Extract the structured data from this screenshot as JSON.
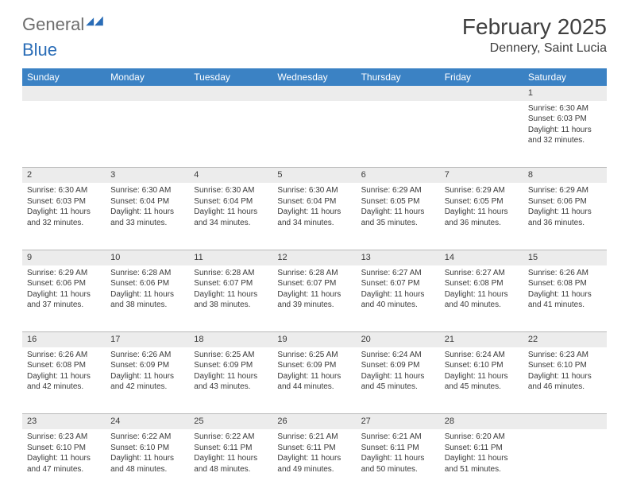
{
  "logo": {
    "word1": "General",
    "word2": "Blue"
  },
  "title": "February 2025",
  "location": "Dennery, Saint Lucia",
  "colors": {
    "header_bg": "#3b82c4",
    "header_text": "#ffffff",
    "numrow_bg": "#ececec",
    "numrow_border": "#b8b8b8",
    "body_text": "#3a3a3a",
    "logo_grey": "#6d6d6d",
    "logo_blue": "#2a6db7"
  },
  "daysOfWeek": [
    "Sunday",
    "Monday",
    "Tuesday",
    "Wednesday",
    "Thursday",
    "Friday",
    "Saturday"
  ],
  "firstDayIndex": 6,
  "daysInMonth": 28,
  "cells": {
    "1": {
      "sunrise": "6:30 AM",
      "sunset": "6:03 PM",
      "dl_h": 11,
      "dl_m": 32
    },
    "2": {
      "sunrise": "6:30 AM",
      "sunset": "6:03 PM",
      "dl_h": 11,
      "dl_m": 32
    },
    "3": {
      "sunrise": "6:30 AM",
      "sunset": "6:04 PM",
      "dl_h": 11,
      "dl_m": 33
    },
    "4": {
      "sunrise": "6:30 AM",
      "sunset": "6:04 PM",
      "dl_h": 11,
      "dl_m": 34
    },
    "5": {
      "sunrise": "6:30 AM",
      "sunset": "6:04 PM",
      "dl_h": 11,
      "dl_m": 34
    },
    "6": {
      "sunrise": "6:29 AM",
      "sunset": "6:05 PM",
      "dl_h": 11,
      "dl_m": 35
    },
    "7": {
      "sunrise": "6:29 AM",
      "sunset": "6:05 PM",
      "dl_h": 11,
      "dl_m": 36
    },
    "8": {
      "sunrise": "6:29 AM",
      "sunset": "6:06 PM",
      "dl_h": 11,
      "dl_m": 36
    },
    "9": {
      "sunrise": "6:29 AM",
      "sunset": "6:06 PM",
      "dl_h": 11,
      "dl_m": 37
    },
    "10": {
      "sunrise": "6:28 AM",
      "sunset": "6:06 PM",
      "dl_h": 11,
      "dl_m": 38
    },
    "11": {
      "sunrise": "6:28 AM",
      "sunset": "6:07 PM",
      "dl_h": 11,
      "dl_m": 38
    },
    "12": {
      "sunrise": "6:28 AM",
      "sunset": "6:07 PM",
      "dl_h": 11,
      "dl_m": 39
    },
    "13": {
      "sunrise": "6:27 AM",
      "sunset": "6:07 PM",
      "dl_h": 11,
      "dl_m": 40
    },
    "14": {
      "sunrise": "6:27 AM",
      "sunset": "6:08 PM",
      "dl_h": 11,
      "dl_m": 40
    },
    "15": {
      "sunrise": "6:26 AM",
      "sunset": "6:08 PM",
      "dl_h": 11,
      "dl_m": 41
    },
    "16": {
      "sunrise": "6:26 AM",
      "sunset": "6:08 PM",
      "dl_h": 11,
      "dl_m": 42
    },
    "17": {
      "sunrise": "6:26 AM",
      "sunset": "6:09 PM",
      "dl_h": 11,
      "dl_m": 42
    },
    "18": {
      "sunrise": "6:25 AM",
      "sunset": "6:09 PM",
      "dl_h": 11,
      "dl_m": 43
    },
    "19": {
      "sunrise": "6:25 AM",
      "sunset": "6:09 PM",
      "dl_h": 11,
      "dl_m": 44
    },
    "20": {
      "sunrise": "6:24 AM",
      "sunset": "6:09 PM",
      "dl_h": 11,
      "dl_m": 45
    },
    "21": {
      "sunrise": "6:24 AM",
      "sunset": "6:10 PM",
      "dl_h": 11,
      "dl_m": 45
    },
    "22": {
      "sunrise": "6:23 AM",
      "sunset": "6:10 PM",
      "dl_h": 11,
      "dl_m": 46
    },
    "23": {
      "sunrise": "6:23 AM",
      "sunset": "6:10 PM",
      "dl_h": 11,
      "dl_m": 47
    },
    "24": {
      "sunrise": "6:22 AM",
      "sunset": "6:10 PM",
      "dl_h": 11,
      "dl_m": 48
    },
    "25": {
      "sunrise": "6:22 AM",
      "sunset": "6:11 PM",
      "dl_h": 11,
      "dl_m": 48
    },
    "26": {
      "sunrise": "6:21 AM",
      "sunset": "6:11 PM",
      "dl_h": 11,
      "dl_m": 49
    },
    "27": {
      "sunrise": "6:21 AM",
      "sunset": "6:11 PM",
      "dl_h": 11,
      "dl_m": 50
    },
    "28": {
      "sunrise": "6:20 AM",
      "sunset": "6:11 PM",
      "dl_h": 11,
      "dl_m": 51
    }
  },
  "labels": {
    "sunrise": "Sunrise: ",
    "sunset": "Sunset: ",
    "daylight_prefix": "Daylight: ",
    "hours_word": " hours",
    "and_word": "and ",
    "minutes_word": " minutes."
  }
}
